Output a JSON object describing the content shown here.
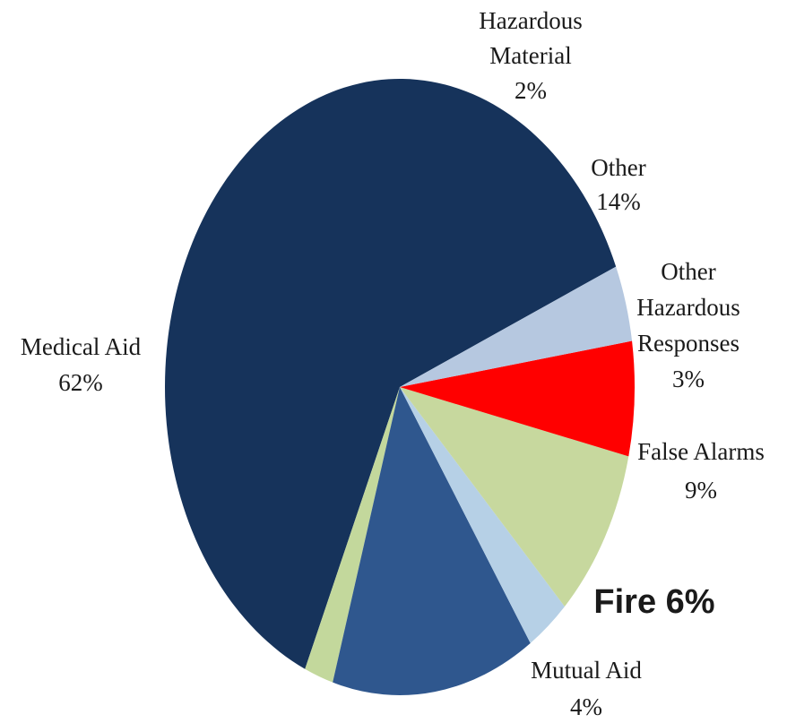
{
  "chart_data": {
    "type": "pie",
    "slices": [
      {
        "name": "Medical Aid",
        "value": 62,
        "label_lines": [
          "Medical Aid",
          "62%"
        ],
        "color": "#16335b"
      },
      {
        "name": "Hazardous Material",
        "value": 2,
        "label_lines": [
          "Hazardous",
          "Material",
          "2%"
        ],
        "color": "#c3d89c"
      },
      {
        "name": "Other",
        "value": 14,
        "label_lines": [
          "Other",
          "14%"
        ],
        "color": "#2f578e"
      },
      {
        "name": "Other Hazardous Responses",
        "value": 3,
        "label_lines": [
          "Other",
          "Hazardous",
          "Responses",
          "3%"
        ],
        "color": "#b6d0e6"
      },
      {
        "name": "False Alarms",
        "value": 9,
        "label_lines": [
          "False Alarms",
          "9%"
        ],
        "color": "#c7d89e"
      },
      {
        "name": "Fire",
        "value": 6,
        "label_lines": [
          "Fire 6%"
        ],
        "color": "#ff0000",
        "label_color": "#ef6c1a",
        "highlight": true
      },
      {
        "name": "Mutual Aid",
        "value": 4,
        "label_lines": [
          "Mutual Aid",
          "4%"
        ],
        "color": "#b6c8e0"
      }
    ],
    "title": "",
    "legend": "none"
  }
}
